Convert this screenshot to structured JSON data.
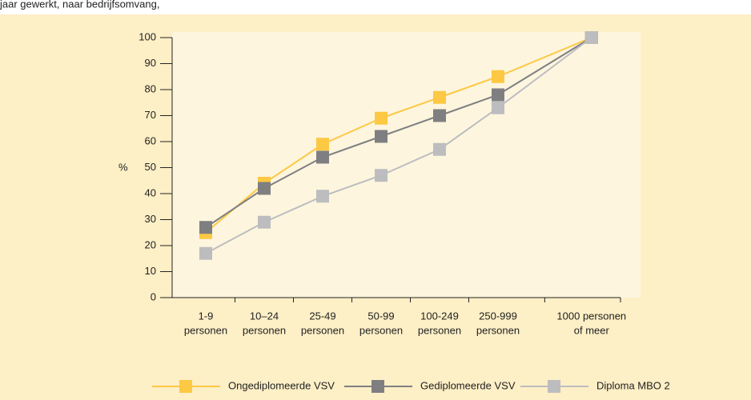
{
  "chart_data": {
    "type": "line",
    "title": "jaar gewerkt, naar bedrijfsomvang,",
    "ylabel": "%",
    "categories": [
      [
        "1-9",
        "personen"
      ],
      [
        "10–24",
        "personen"
      ],
      [
        "25-49",
        "personen"
      ],
      [
        "50-99",
        "personen"
      ],
      [
        "100-249",
        "personen"
      ],
      [
        "250-999",
        "personen"
      ],
      [
        "1000 personen",
        "of meer"
      ]
    ],
    "series": [
      {
        "name": "Ongediplomeerde VSV",
        "color": "#fdc843",
        "values": [
          25,
          44,
          59,
          69,
          77,
          85,
          100
        ]
      },
      {
        "name": "Gediplomeerde VSV",
        "color": "#7f7f82",
        "values": [
          27,
          42,
          54,
          62,
          70,
          78,
          100
        ]
      },
      {
        "name": "Diploma MBO 2",
        "color": "#bdbdc0",
        "values": [
          17,
          29,
          39,
          47,
          57,
          73,
          100
        ]
      }
    ],
    "ylim": [
      0,
      100
    ],
    "yticks": [
      0,
      10,
      20,
      30,
      40,
      50,
      60,
      70,
      80,
      90,
      100
    ]
  }
}
